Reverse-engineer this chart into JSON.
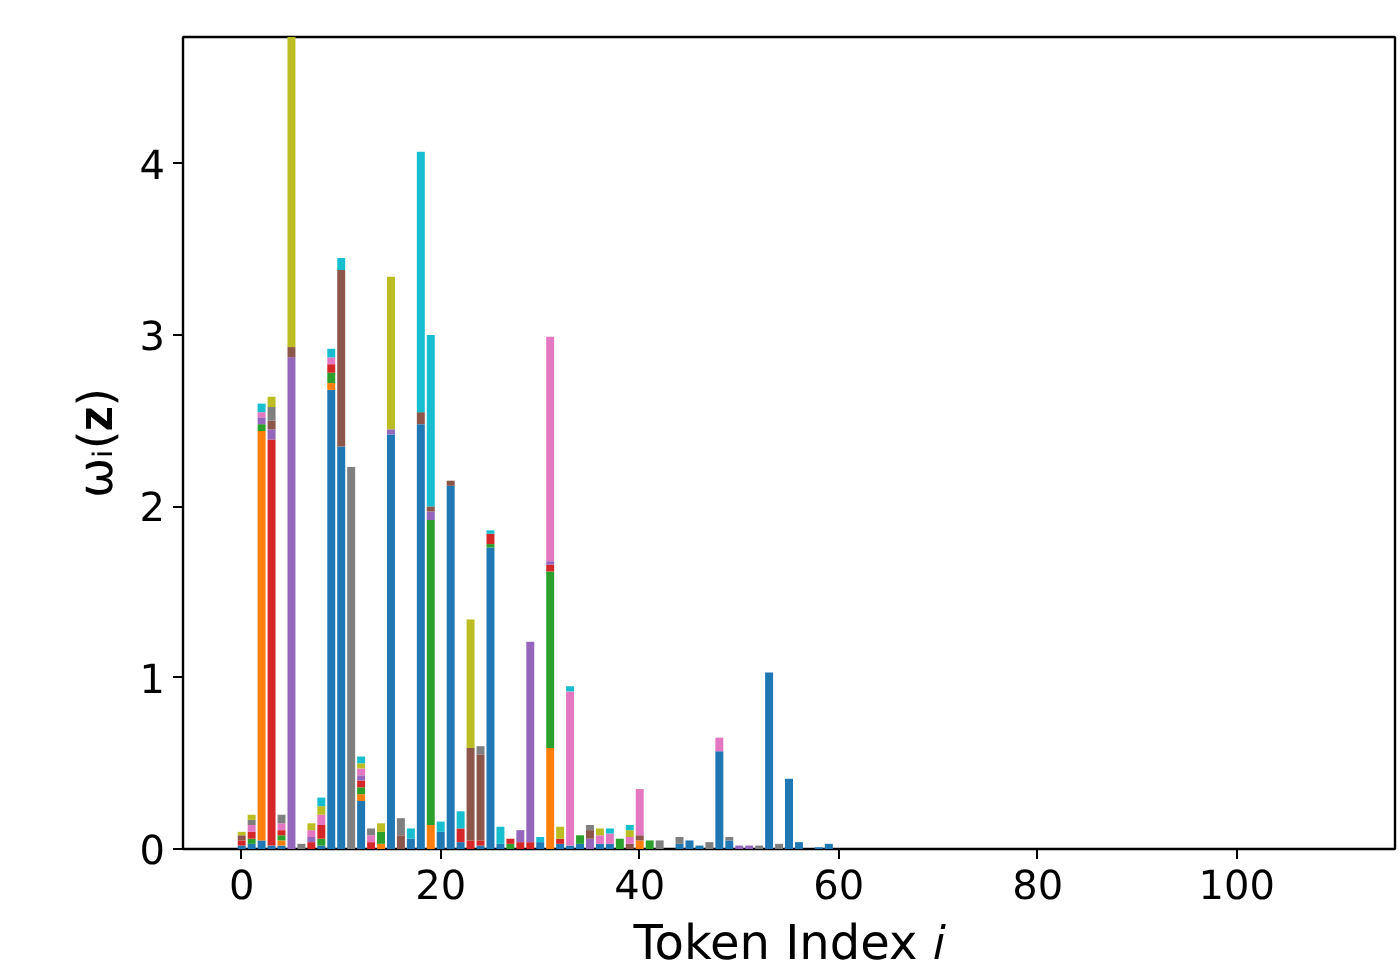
{
  "chart_data": {
    "type": "bar",
    "stacked": true,
    "xlabel": "Token Index 𝑖",
    "ylabel": "ωᵢ(𝐳)",
    "x": [
      0,
      1,
      2,
      3,
      4,
      5,
      6,
      7,
      8,
      9,
      10,
      11,
      12,
      13,
      14,
      15,
      16,
      17,
      18,
      19,
      20,
      21,
      22,
      23,
      24,
      25,
      26,
      27,
      28,
      29,
      30,
      31,
      32,
      33,
      34,
      35,
      36,
      37,
      38,
      39,
      40,
      41,
      42,
      43,
      44,
      45,
      46,
      47,
      48,
      49,
      50,
      51,
      52,
      53,
      54,
      55,
      56,
      57,
      58,
      59
    ],
    "xlim": [
      -5.9,
      115.9
    ],
    "xticks": [
      0,
      20,
      40,
      60,
      80,
      100
    ],
    "ylim": [
      0,
      4.74
    ],
    "yticks": [
      0,
      1,
      2,
      3,
      4
    ],
    "grid": false,
    "series": [
      {
        "color": "#1f77b4",
        "values": [
          0.02,
          0.03,
          0.05,
          0.02,
          0.02,
          0,
          0,
          0,
          0.02,
          2.68,
          2.35,
          0,
          0.28,
          0,
          0,
          2.42,
          0,
          0.06,
          2.48,
          0,
          0.1,
          2.12,
          0.04,
          0,
          0.02,
          1.76,
          0.03,
          0,
          0,
          0,
          0.04,
          0,
          0.03,
          0.02,
          0.03,
          0,
          0.03,
          0.03,
          0,
          0,
          0,
          0,
          0,
          0,
          0.03,
          0.05,
          0.02,
          0,
          0.57,
          0.05,
          0,
          0,
          0,
          1.03,
          0,
          0.41,
          0.04,
          0,
          0.01,
          0.03
        ]
      },
      {
        "color": "#ff7f0e",
        "values": [
          0,
          0,
          2.39,
          0,
          0.03,
          0,
          0,
          0,
          0,
          0.04,
          0,
          0,
          0.04,
          0,
          0.03,
          0,
          0,
          0,
          0,
          0.14,
          0,
          0,
          0,
          0,
          0,
          0,
          0,
          0,
          0,
          0,
          0,
          0.59,
          0,
          0,
          0,
          0,
          0,
          0,
          0,
          0,
          0.05,
          0,
          0,
          0,
          0,
          0,
          0,
          0,
          0,
          0,
          0,
          0,
          0,
          0,
          0,
          0,
          0,
          0,
          0,
          0
        ]
      },
      {
        "color": "#2ca02c",
        "values": [
          0,
          0.03,
          0.04,
          0,
          0.03,
          0,
          0,
          0,
          0.04,
          0.06,
          0,
          0,
          0.04,
          0,
          0.07,
          0,
          0,
          0,
          0,
          1.78,
          0,
          0,
          0,
          0,
          0,
          0.02,
          0,
          0.03,
          0,
          0,
          0,
          1.03,
          0,
          0,
          0.05,
          0,
          0,
          0,
          0.06,
          0,
          0,
          0.05,
          0,
          0,
          0,
          0,
          0,
          0,
          0,
          0,
          0,
          0,
          0,
          0,
          0,
          0,
          0,
          0,
          0,
          0
        ]
      },
      {
        "color": "#d62728",
        "values": [
          0.03,
          0.04,
          0,
          2.37,
          0.03,
          0,
          0,
          0.04,
          0.08,
          0.05,
          0,
          0,
          0.04,
          0.04,
          0,
          0,
          0,
          0,
          0,
          0,
          0,
          0,
          0.08,
          0.05,
          0.03,
          0.06,
          0,
          0.03,
          0.04,
          0.04,
          0,
          0.04,
          0.03,
          0,
          0,
          0,
          0,
          0,
          0,
          0,
          0,
          0,
          0,
          0,
          0,
          0,
          0,
          0,
          0,
          0,
          0,
          0,
          0,
          0,
          0,
          0,
          0,
          0,
          0,
          0
        ]
      },
      {
        "color": "#9467bd",
        "values": [
          0,
          0,
          0.04,
          0.06,
          0,
          2.87,
          0,
          0.03,
          0,
          0,
          0,
          0,
          0.03,
          0,
          0,
          0.03,
          0,
          0,
          0,
          0.05,
          0,
          0,
          0,
          0,
          0,
          0,
          0,
          0,
          0.07,
          1.17,
          0,
          0.02,
          0,
          0,
          0,
          0.06,
          0,
          0,
          0,
          0,
          0,
          0,
          0,
          0,
          0,
          0,
          0,
          0,
          0,
          0,
          0.02,
          0.02,
          0,
          0,
          0,
          0,
          0,
          0,
          0,
          0
        ]
      },
      {
        "color": "#8c564b",
        "values": [
          0.03,
          0,
          0,
          0.05,
          0,
          0.06,
          0,
          0,
          0,
          0,
          1.03,
          0,
          0,
          0,
          0,
          0,
          0.08,
          0,
          0.07,
          0.03,
          0,
          0.03,
          0,
          0.54,
          0.5,
          0,
          0,
          0,
          0,
          0,
          0,
          0,
          0,
          0,
          0,
          0.05,
          0,
          0,
          0,
          0.03,
          0.03,
          0,
          0,
          0,
          0,
          0,
          0,
          0,
          0,
          0,
          0,
          0,
          0,
          0,
          0,
          0,
          0,
          0,
          0,
          0
        ]
      },
      {
        "color": "#e377c2",
        "values": [
          0,
          0.04,
          0.03,
          0,
          0.04,
          0,
          0,
          0.04,
          0.06,
          0.04,
          0,
          0,
          0.04,
          0.04,
          0,
          0,
          0,
          0,
          0,
          0,
          0,
          0,
          0,
          0,
          0,
          0,
          0,
          0,
          0,
          0,
          0,
          1.31,
          0,
          0.9,
          0,
          0,
          0.05,
          0.06,
          0,
          0.04,
          0.27,
          0,
          0,
          0,
          0,
          0,
          0,
          0,
          0.08,
          0,
          0,
          0,
          0,
          0,
          0,
          0,
          0,
          0,
          0,
          0
        ]
      },
      {
        "color": "#7f7f7f",
        "values": [
          0,
          0.03,
          0,
          0.08,
          0.05,
          0,
          0.03,
          0,
          0,
          0,
          0,
          2.23,
          0,
          0.04,
          0,
          0,
          0.1,
          0,
          0,
          0,
          0,
          0,
          0,
          0,
          0.05,
          0,
          0,
          0,
          0,
          0,
          0,
          0,
          0,
          0,
          0,
          0.03,
          0,
          0,
          0,
          0,
          0,
          0,
          0.05,
          0,
          0.04,
          0,
          0,
          0.04,
          0,
          0.02,
          0,
          0,
          0.02,
          0,
          0.03,
          0,
          0,
          0,
          0,
          0
        ]
      },
      {
        "color": "#bcbd22",
        "values": [
          0.02,
          0.03,
          0,
          0.06,
          0,
          1.81,
          0,
          0.04,
          0.05,
          0,
          0,
          0,
          0.03,
          0,
          0.05,
          0.89,
          0,
          0,
          0,
          0,
          0,
          0,
          0,
          0.75,
          0,
          0,
          0,
          0,
          0,
          0,
          0,
          0,
          0.07,
          0,
          0,
          0,
          0.04,
          0,
          0,
          0.04,
          0,
          0,
          0,
          0,
          0,
          0,
          0,
          0,
          0,
          0,
          0,
          0,
          0,
          0,
          0,
          0,
          0,
          0,
          0,
          0
        ]
      },
      {
        "color": "#17becf",
        "values": [
          0,
          0,
          0.05,
          0,
          0,
          0,
          0,
          0,
          0.05,
          0.05,
          0.07,
          0,
          0.04,
          0,
          0,
          0,
          0,
          0.06,
          1.52,
          1.0,
          0.06,
          0,
          0.1,
          0,
          0,
          0.02,
          0.1,
          0,
          0,
          0,
          0.03,
          0,
          0,
          0.03,
          0,
          0,
          0,
          0.03,
          0,
          0.03,
          0,
          0,
          0,
          0,
          0,
          0,
          0,
          0,
          0,
          0,
          0,
          0,
          0,
          0,
          0,
          0,
          0,
          0,
          0,
          0
        ]
      }
    ]
  }
}
